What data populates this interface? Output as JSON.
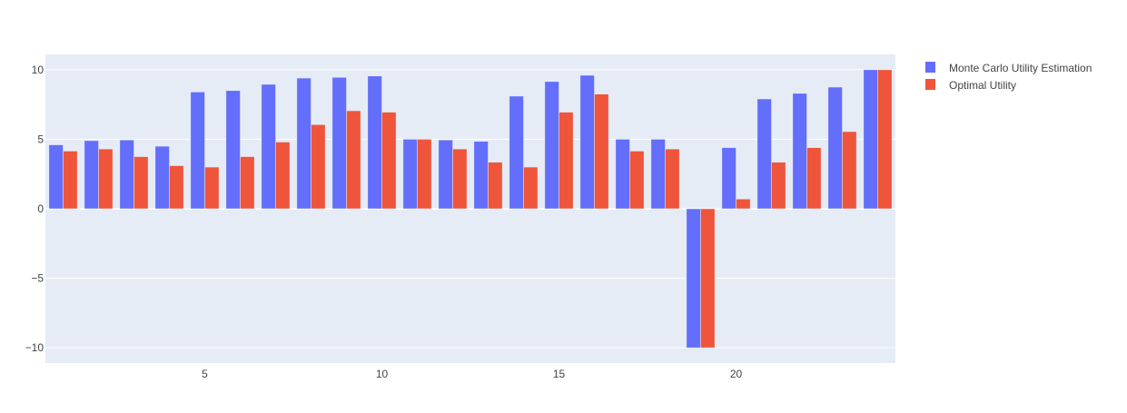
{
  "chart_data": {
    "type": "bar",
    "x": [
      1,
      2,
      3,
      4,
      5,
      6,
      7,
      8,
      9,
      10,
      11,
      12,
      13,
      14,
      15,
      16,
      17,
      18,
      19,
      20,
      21,
      22,
      23,
      24
    ],
    "xlim": [
      0.5,
      24.5
    ],
    "ylim": [
      -11.1,
      11.1
    ],
    "x_ticks": [
      5,
      10,
      15,
      20
    ],
    "y_ticks": [
      -10,
      -5,
      0,
      5,
      10
    ],
    "y_tick_labels": [
      "−10",
      "−5",
      "0",
      "5",
      "10"
    ],
    "grid": true,
    "legend_position": "top-right",
    "series": [
      {
        "name": "Monte Carlo Utility Estimation",
        "color": "#636efa",
        "values": [
          4.6,
          4.9,
          4.95,
          4.5,
          8.4,
          8.5,
          8.95,
          9.4,
          9.45,
          9.55,
          5.0,
          4.95,
          4.85,
          8.1,
          9.15,
          9.6,
          5.0,
          5.0,
          -10.0,
          4.4,
          7.9,
          8.3,
          8.75,
          10.0
        ]
      },
      {
        "name": "Optimal Utility",
        "color": "#ef553b",
        "values": [
          4.15,
          4.3,
          3.75,
          3.1,
          3.0,
          3.75,
          4.8,
          6.05,
          7.05,
          6.95,
          5.0,
          4.3,
          3.35,
          3.0,
          6.95,
          8.25,
          4.15,
          4.3,
          -10.0,
          0.7,
          3.35,
          4.4,
          5.55,
          10.0
        ]
      }
    ]
  },
  "colors": {
    "plot_background": "#e5ecf6",
    "grid": "#ffffff",
    "text": "#444444"
  }
}
